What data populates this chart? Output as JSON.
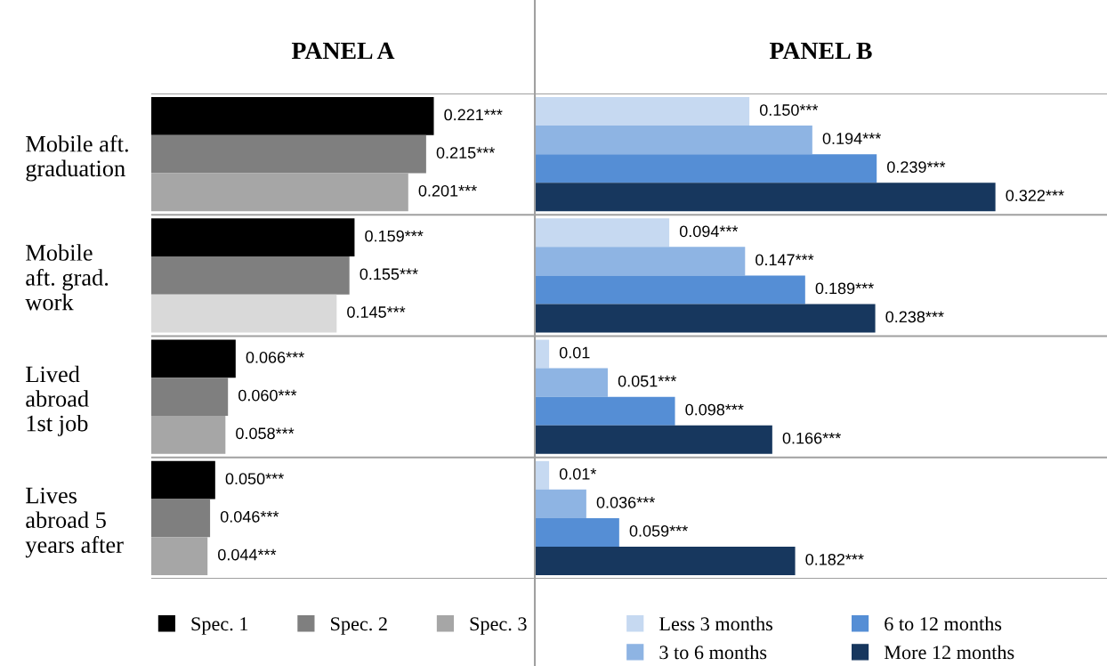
{
  "chart_data": [
    {
      "type": "bar",
      "orientation": "horizontal",
      "title": "PANEL A",
      "categories": [
        "Mobile aft.\ngraduation",
        "Mobile\naft. grad.\nwork",
        "Lived\nabroad\n1st job",
        "Lives\nabroad 5\nyears after"
      ],
      "xlim": [
        0,
        0.3
      ],
      "tick_labels": "y",
      "grid": "y",
      "legend": "bottom",
      "series": [
        {
          "name": "Spec. 1",
          "color": "#000000",
          "values": [
            0.221,
            0.159,
            0.066,
            0.05
          ],
          "value_labels": [
            "0.221***",
            "0.159***",
            "0.066***",
            "0.050***"
          ]
        },
        {
          "name": "Spec. 2",
          "color": "#7f7f7f",
          "values": [
            0.215,
            0.155,
            0.06,
            0.046
          ],
          "value_labels": [
            "0.215***",
            "0.155***",
            "0.060***",
            "0.046***"
          ]
        },
        {
          "name": "Spec. 3",
          "color": "#a6a6a6",
          "colors": [
            "#a6a6a6",
            "#d9d9d9",
            "#a6a6a6",
            "#a6a6a6"
          ],
          "values": [
            0.201,
            0.145,
            0.058,
            0.044
          ],
          "value_labels": [
            "0.201***",
            "0.145***",
            "0.058***",
            "0.044***"
          ]
        }
      ]
    },
    {
      "type": "bar",
      "orientation": "horizontal",
      "title": "PANEL B",
      "categories": [
        null,
        null,
        null,
        null
      ],
      "xlim": [
        0,
        0.4
      ],
      "tick_labels": false,
      "grid": "y",
      "legend": "bottom",
      "series": [
        {
          "name": "Less 3 months",
          "color": "#c6d9f1",
          "values": [
            0.15,
            0.094,
            0.01,
            0.01
          ],
          "value_labels": [
            "0.150***",
            "0.094***",
            "0.01",
            "0.01*"
          ]
        },
        {
          "name": "3 to 6 months",
          "color": "#8eb4e3",
          "values": [
            0.194,
            0.147,
            0.051,
            0.036
          ],
          "value_labels": [
            "0.194***",
            "0.147***",
            "0.051***",
            "0.036***"
          ]
        },
        {
          "name": "6 to 12 months",
          "color": "#558ed5",
          "values": [
            0.239,
            0.189,
            0.098,
            0.059
          ],
          "value_labels": [
            "0.239***",
            "0.189***",
            "0.098***",
            "0.059***"
          ]
        },
        {
          "name": "More 12 months",
          "color": "#17375e",
          "values": [
            0.322,
            0.238,
            0.166,
            0.182
          ],
          "value_labels": [
            "0.322***",
            "0.238***",
            "0.166***",
            "0.182***"
          ]
        }
      ]
    }
  ]
}
